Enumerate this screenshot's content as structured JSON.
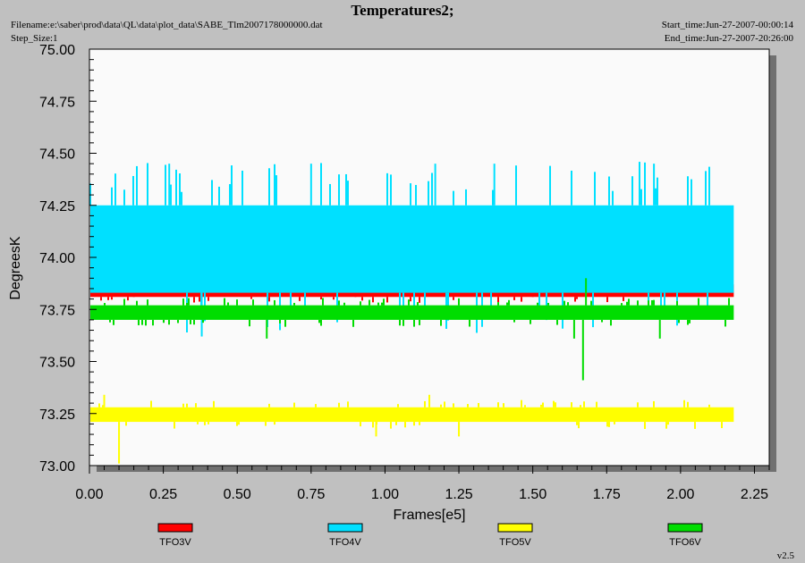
{
  "header": {
    "title": "Temperatures2;",
    "filename": "Filename:e:\\saber\\prod\\data\\QL\\data\\plot_data\\SABE_Tlm2007178000000.dat",
    "step_size": "Step_Size:1",
    "start_time": "Start_time:Jun-27-2007-00:00:14",
    "end_time": "End_time:Jun-27-2007-20:26:00"
  },
  "version": "v2.5",
  "chart_data": {
    "type": "line",
    "title": "Temperatures2;",
    "xlabel": "Frames[e5]",
    "ylabel": "DegreesK",
    "xlim": [
      0.0,
      2.3
    ],
    "ylim": [
      73.0,
      75.0
    ],
    "x_ticks": [
      "0.00",
      "0.25",
      "0.50",
      "0.75",
      "1.00",
      "1.25",
      "1.50",
      "1.75",
      "2.00",
      "2.25"
    ],
    "y_ticks": [
      "73.00",
      "73.25",
      "73.50",
      "73.75",
      "74.00",
      "74.25",
      "74.50",
      "74.75",
      "75.00"
    ],
    "x_range_data": [
      0.0,
      2.18
    ],
    "grid": false,
    "legend_position": "bottom",
    "series": [
      {
        "name": "TFO3V",
        "color": "#ff0000",
        "typical_range": [
          73.81,
          73.87
        ],
        "spikes": [
          {
            "x": 0.15,
            "y": 73.87
          },
          {
            "x": 0.9,
            "y": 73.87
          },
          {
            "x": 1.5,
            "y": 73.87
          }
        ]
      },
      {
        "name": "TFO4V",
        "color": "#00e0ff",
        "typical_range": [
          73.83,
          74.25
        ],
        "spikes": [
          {
            "x": 0.27,
            "y": 74.45
          },
          {
            "x": 0.38,
            "y": 73.62
          },
          {
            "x": 0.75,
            "y": 74.45
          },
          {
            "x": 1.17,
            "y": 74.45
          },
          {
            "x": 1.37,
            "y": 74.45
          },
          {
            "x": 1.91,
            "y": 74.45
          }
        ]
      },
      {
        "name": "TFO5V",
        "color": "#ffff00",
        "typical_range": [
          73.21,
          73.28
        ],
        "spikes": [
          {
            "x": 0.1,
            "y": 73.01
          },
          {
            "x": 0.97,
            "y": 73.14
          },
          {
            "x": 1.25,
            "y": 73.14
          },
          {
            "x": 0.05,
            "y": 73.34
          },
          {
            "x": 1.15,
            "y": 73.34
          }
        ]
      },
      {
        "name": "TFO6V",
        "color": "#00dd00",
        "typical_range": [
          73.7,
          73.77
        ],
        "spikes": [
          {
            "x": 1.67,
            "y": 73.41
          },
          {
            "x": 0.6,
            "y": 73.61
          },
          {
            "x": 1.64,
            "y": 73.61
          },
          {
            "x": 1.93,
            "y": 73.61
          },
          {
            "x": 1.68,
            "y": 73.9
          }
        ]
      }
    ]
  }
}
